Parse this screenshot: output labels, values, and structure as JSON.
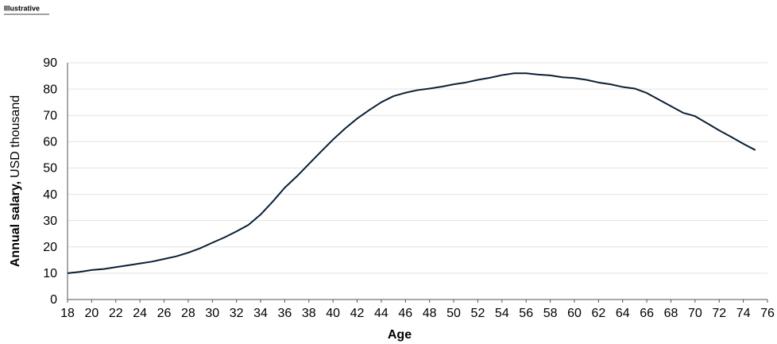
{
  "note_label": "Illustrative",
  "chart_data": {
    "type": "line",
    "ylabel_bold": "Annual salary,",
    "ylabel": "USD thousand",
    "xlabel": "Age",
    "x": [
      18,
      19,
      20,
      21,
      22,
      23,
      24,
      25,
      26,
      27,
      28,
      29,
      30,
      31,
      32,
      33,
      34,
      35,
      36,
      37,
      38,
      39,
      40,
      41,
      42,
      43,
      44,
      45,
      46,
      47,
      48,
      49,
      50,
      51,
      52,
      53,
      54,
      55,
      56,
      57,
      58,
      59,
      60,
      61,
      62,
      63,
      64,
      65,
      66,
      67,
      68,
      69,
      70,
      71,
      72,
      73,
      74,
      75
    ],
    "values": [
      10,
      10.5,
      11.2,
      11.6,
      12.3,
      13,
      13.7,
      14.4,
      15.4,
      16.4,
      17.8,
      19.5,
      21.6,
      23.6,
      25.9,
      28.4,
      32.3,
      37.2,
      42.5,
      46.8,
      51.5,
      56.2,
      60.8,
      65,
      68.8,
      72,
      75,
      77.3,
      78.6,
      79.6,
      80.2,
      80.9,
      81.8,
      82.5,
      83.5,
      84.3,
      85.3,
      86,
      86,
      85.5,
      85.2,
      84.5,
      84.2,
      83.5,
      82.5,
      81.8,
      80.8,
      80.2,
      78.5,
      76,
      73.5,
      71,
      69.7,
      67,
      64.3,
      61.8,
      59.2,
      56.8
    ],
    "color": "#0b1f33",
    "xlim": [
      18,
      76
    ],
    "xticks": [
      18,
      20,
      22,
      24,
      26,
      28,
      30,
      32,
      34,
      36,
      38,
      40,
      42,
      44,
      46,
      48,
      50,
      52,
      54,
      56,
      58,
      60,
      62,
      64,
      66,
      68,
      70,
      72,
      74,
      76
    ],
    "ylim": [
      0,
      90
    ],
    "yticks": [
      0,
      10,
      20,
      30,
      40,
      50,
      60,
      70,
      80,
      90
    ],
    "grid": true
  }
}
